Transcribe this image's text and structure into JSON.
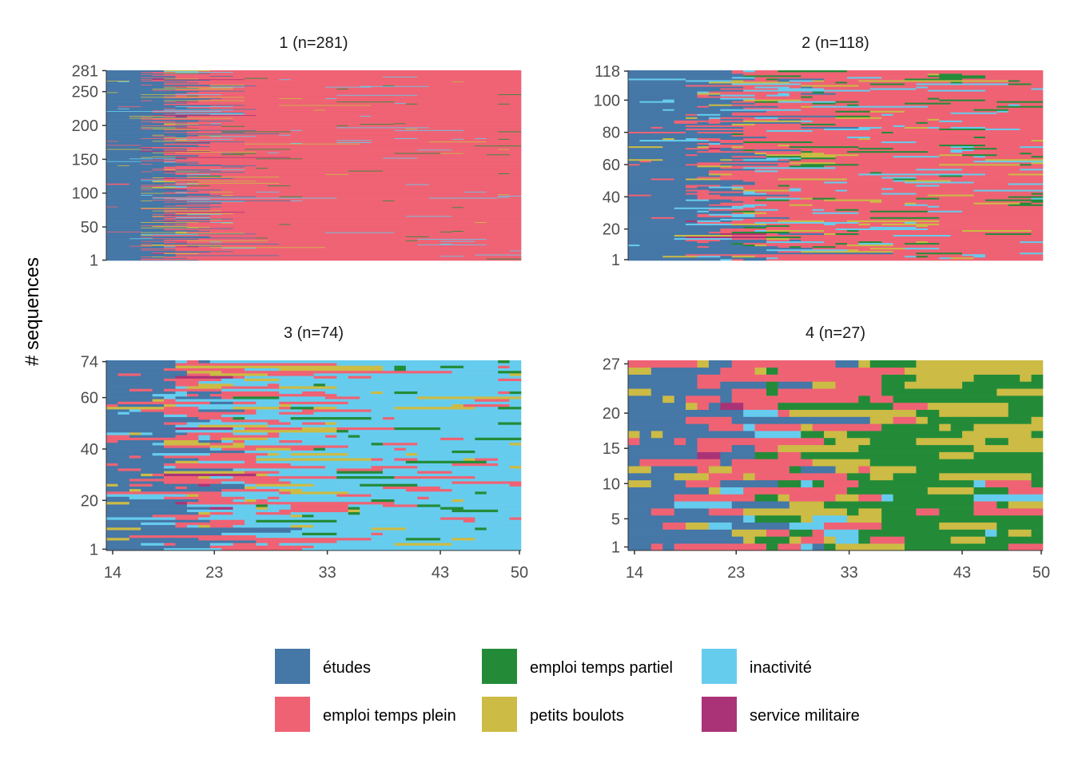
{
  "chart_data": {
    "type": "heatmap",
    "subtype": "sequence index plot",
    "ylabel": "# sequences",
    "xlabel": "",
    "xlim": [
      14,
      50
    ],
    "xticks": [
      14,
      23,
      33,
      43,
      50
    ],
    "states": [
      {
        "key": "etudes",
        "label": "études",
        "color": "#4577a7"
      },
      {
        "key": "tp",
        "label": "emploi temps plein",
        "color": "#ef6274"
      },
      {
        "key": "tpart",
        "label": "emploi temps partiel",
        "color": "#238b38"
      },
      {
        "key": "pb",
        "label": "petits boulots",
        "color": "#ccbb44"
      },
      {
        "key": "inact",
        "label": "inactivité",
        "color": "#66ccee"
      },
      {
        "key": "sm",
        "label": "service militaire",
        "color": "#aa3377"
      }
    ],
    "panels": [
      {
        "title": "1 (n=281)",
        "n": 281,
        "yticks": [
          1,
          50,
          100,
          150,
          200,
          250,
          281
        ],
        "show_x_axis": false,
        "profile": [
          {
            "from": 14,
            "to": 17,
            "etudes": 0.95,
            "tp": 0.02,
            "pb": 0.02,
            "inact": 0.01
          },
          {
            "from": 17,
            "to": 19,
            "etudes": 0.55,
            "tp": 0.25,
            "pb": 0.12,
            "inact": 0.05,
            "sm": 0.03
          },
          {
            "from": 19,
            "to": 21,
            "etudes": 0.15,
            "tp": 0.6,
            "pb": 0.1,
            "inact": 0.05,
            "sm": 0.1
          },
          {
            "from": 21,
            "to": 25,
            "etudes": 0.02,
            "tp": 0.88,
            "pb": 0.04,
            "inact": 0.04,
            "tpart": 0.02
          },
          {
            "from": 25,
            "to": 50,
            "etudes": 0.0,
            "tp": 0.97,
            "tpart": 0.015,
            "inact": 0.01,
            "pb": 0.005
          }
        ]
      },
      {
        "title": "2 (n=118)",
        "n": 118,
        "yticks": [
          1,
          20,
          40,
          60,
          80,
          100,
          118
        ],
        "show_x_axis": false,
        "profile": [
          {
            "from": 14,
            "to": 19,
            "etudes": 0.93,
            "tp": 0.03,
            "inact": 0.03,
            "pb": 0.01
          },
          {
            "from": 19,
            "to": 23,
            "etudes": 0.45,
            "tp": 0.3,
            "inact": 0.1,
            "pb": 0.08,
            "sm": 0.07
          },
          {
            "from": 23,
            "to": 30,
            "etudes": 0.05,
            "tp": 0.65,
            "inact": 0.12,
            "pb": 0.1,
            "tpart": 0.08
          },
          {
            "from": 30,
            "to": 50,
            "etudes": 0.0,
            "tp": 0.82,
            "inact": 0.08,
            "pb": 0.04,
            "tpart": 0.06
          }
        ]
      },
      {
        "title": "3 (n=74)",
        "n": 74,
        "yticks": [
          1,
          20,
          40,
          60,
          74
        ],
        "show_x_axis": true,
        "profile": [
          {
            "from": 14,
            "to": 19,
            "etudes": 0.8,
            "tp": 0.1,
            "inact": 0.06,
            "pb": 0.04
          },
          {
            "from": 19,
            "to": 24,
            "etudes": 0.15,
            "tp": 0.5,
            "inact": 0.2,
            "pb": 0.1,
            "sm": 0.05
          },
          {
            "from": 24,
            "to": 32,
            "etudes": 0.0,
            "tp": 0.35,
            "inact": 0.5,
            "pb": 0.1,
            "tpart": 0.05
          },
          {
            "from": 32,
            "to": 50,
            "etudes": 0.0,
            "tp": 0.08,
            "inact": 0.8,
            "pb": 0.05,
            "tpart": 0.07
          }
        ]
      },
      {
        "title": "4 (n=27)",
        "n": 27,
        "yticks": [
          1,
          5,
          10,
          15,
          20,
          27
        ],
        "show_x_axis": true,
        "profile": [
          {
            "from": 14,
            "to": 18,
            "etudes": 0.75,
            "tp": 0.2,
            "pb": 0.05
          },
          {
            "from": 18,
            "to": 24,
            "etudes": 0.3,
            "tp": 0.4,
            "pb": 0.15,
            "inact": 0.08,
            "sm": 0.07
          },
          {
            "from": 24,
            "to": 33,
            "etudes": 0.05,
            "tp": 0.3,
            "pb": 0.3,
            "tpart": 0.25,
            "inact": 0.1
          },
          {
            "from": 33,
            "to": 50,
            "etudes": 0.0,
            "tp": 0.12,
            "pb": 0.23,
            "tpart": 0.6,
            "inact": 0.05
          }
        ]
      }
    ],
    "legend": {
      "position": "bottom",
      "columns": 3
    }
  }
}
